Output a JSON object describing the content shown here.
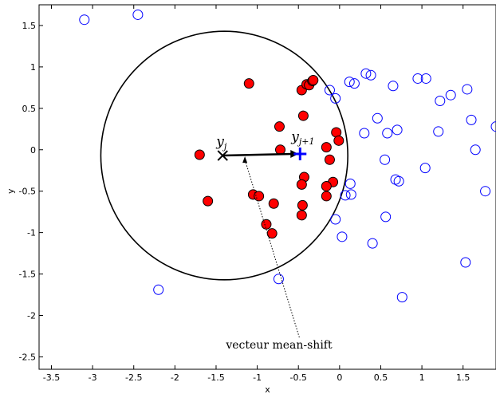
{
  "chart_data": {
    "type": "scatter",
    "xlabel": "x",
    "ylabel": "y",
    "xlim": [
      -3.65,
      1.9
    ],
    "ylim": [
      -2.65,
      1.75
    ],
    "xticks": [
      "-3.5",
      "-3",
      "-2.5",
      "-2",
      "-1.5",
      "-1",
      "-0.5",
      "0",
      "0.5",
      "1",
      "1.5"
    ],
    "yticks": [
      "1.5",
      "1",
      "0.5",
      "0",
      "-0.5",
      "-1",
      "-1.5",
      "-2",
      "-2.5"
    ],
    "grid": false,
    "circle": {
      "center": [
        -1.4,
        -0.07
      ],
      "radius": 1.5,
      "color": "#000000"
    },
    "inside_points_color": "#ff0000",
    "outside_points_color": "#0000ff",
    "inside_points": [
      [
        -1.7,
        -0.06
      ],
      [
        -1.6,
        -0.62
      ],
      [
        -1.1,
        0.8
      ],
      [
        -1.05,
        -0.54
      ],
      [
        -0.98,
        -0.56
      ],
      [
        -0.89,
        -0.9
      ],
      [
        -0.82,
        -1.01
      ],
      [
        -0.8,
        -0.65
      ],
      [
        -0.73,
        0.28
      ],
      [
        -0.72,
        0.0
      ],
      [
        -0.46,
        0.72
      ],
      [
        -0.44,
        0.41
      ],
      [
        -0.4,
        0.79
      ],
      [
        -0.37,
        0.78
      ],
      [
        -0.33,
        0.83
      ],
      [
        -0.32,
        0.84
      ],
      [
        -0.43,
        -0.33
      ],
      [
        -0.46,
        -0.42
      ],
      [
        -0.45,
        -0.67
      ],
      [
        -0.46,
        -0.79
      ],
      [
        -0.16,
        0.03
      ],
      [
        -0.12,
        -0.12
      ],
      [
        -0.08,
        -0.39
      ],
      [
        -0.16,
        -0.44
      ],
      [
        -0.16,
        -0.56
      ],
      [
        -0.04,
        0.21
      ],
      [
        -0.01,
        0.11
      ]
    ],
    "outside_points": [
      [
        -3.1,
        1.57
      ],
      [
        -2.45,
        1.63
      ],
      [
        -2.2,
        -1.69
      ],
      [
        -0.74,
        -1.56
      ],
      [
        -0.12,
        0.72
      ],
      [
        -0.05,
        0.62
      ],
      [
        0.12,
        0.82
      ],
      [
        0.18,
        0.8
      ],
      [
        0.32,
        0.92
      ],
      [
        0.38,
        0.9
      ],
      [
        0.46,
        0.38
      ],
      [
        0.58,
        0.2
      ],
      [
        0.3,
        0.2
      ],
      [
        0.13,
        -0.41
      ],
      [
        0.07,
        -0.55
      ],
      [
        0.14,
        -0.54
      ],
      [
        -0.05,
        -0.84
      ],
      [
        0.03,
        -1.05
      ],
      [
        0.55,
        -0.12
      ],
      [
        0.56,
        -0.81
      ],
      [
        0.65,
        0.77
      ],
      [
        0.7,
        0.24
      ],
      [
        0.4,
        -1.13
      ],
      [
        0.68,
        -0.36
      ],
      [
        0.72,
        -0.38
      ],
      [
        0.76,
        -1.78
      ],
      [
        0.95,
        0.86
      ],
      [
        1.05,
        0.86
      ],
      [
        1.04,
        -0.22
      ],
      [
        1.22,
        0.59
      ],
      [
        1.2,
        0.22
      ],
      [
        1.35,
        0.66
      ],
      [
        1.55,
        0.73
      ],
      [
        1.6,
        0.36
      ],
      [
        1.65,
        0.0
      ],
      [
        1.77,
        -0.5
      ],
      [
        1.53,
        -1.36
      ],
      [
        1.9,
        0.28
      ]
    ],
    "marked_points": [
      {
        "label": "y_j",
        "x": -1.42,
        "y": -0.07,
        "color": "#ff0000"
      },
      {
        "label": "y_{j+1}",
        "x": -0.48,
        "y": -0.05,
        "color": "#0000ff"
      }
    ],
    "shift_arrow": {
      "from": [
        -1.42,
        -0.07
      ],
      "to": [
        -0.48,
        -0.05
      ]
    },
    "annotations": [
      {
        "text": "vecteur mean-shift",
        "x": -1.38,
        "y": -2.4,
        "points_to": [
          -1.15,
          -0.08
        ]
      }
    ]
  }
}
